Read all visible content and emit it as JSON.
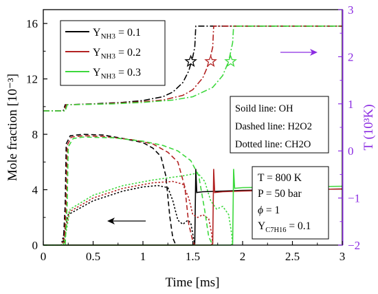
{
  "chart_data": {
    "type": "line",
    "xlabel": "Time [ms]",
    "ylabel": "Mole fraction [10⁻³]",
    "y2label": "T (10³K)",
    "xlim": [
      0,
      3
    ],
    "ylim": [
      0,
      17
    ],
    "y2lim": [
      -2,
      3
    ],
    "x_ticks": [
      0,
      0.5,
      1,
      1.5,
      2,
      2.5,
      3
    ],
    "x_tick_labels": [
      "0",
      "0.5",
      "1",
      "1.5",
      "2",
      "2.5",
      "3"
    ],
    "y_ticks": [
      0,
      4,
      8,
      12,
      16
    ],
    "y_tick_labels": [
      "0",
      "4",
      "8",
      "12",
      "16"
    ],
    "y2_ticks": [
      -2,
      -1,
      0,
      1,
      2,
      3
    ],
    "y2_tick_labels": [
      "−2",
      "−1",
      "0",
      "1",
      "2",
      "3"
    ],
    "grid": false,
    "legend_position": "top-left",
    "colors": {
      "right_axis": "#8B2BE2",
      "box": "#000000"
    },
    "legend": [
      {
        "prefix": "Y",
        "sub": "NH3",
        "suffix": " = 0.1",
        "color": "#000000"
      },
      {
        "prefix": "Y",
        "sub": "NH3",
        "suffix": " = 0.2",
        "color": "#B22222"
      },
      {
        "prefix": "Y",
        "sub": "NH3",
        "suffix": " = 0.3",
        "color": "#3CD83C"
      }
    ],
    "line_style_notes": [
      "Soild line: OH",
      "Dashed line: H2O2",
      "Dotted line: CH2O"
    ],
    "conditions": {
      "T": "T = 800 K",
      "P": "P = 50 bar",
      "phi_symbol": "ϕ",
      "phi_value": " = 1",
      "fuel_prefix": "Y",
      "fuel_sub": "C7H16",
      "fuel_suffix": " = 0.1"
    },
    "arrows": [
      {
        "direction": "left",
        "refers_to": "left axis",
        "color": "#000000"
      },
      {
        "direction": "right",
        "refers_to": "right axis",
        "color": "#8B2BE2"
      }
    ],
    "series": [
      {
        "color": "#000000",
        "ignition_ms": 1.53,
        "OH": [
          [
            0,
            0
          ],
          [
            1.5,
            0
          ],
          [
            1.52,
            0.1
          ],
          [
            1.53,
            5.5
          ],
          [
            1.54,
            3.8
          ],
          [
            1.6,
            3.85
          ],
          [
            1.8,
            3.9
          ],
          [
            2.0,
            3.95
          ],
          [
            2.5,
            4.0
          ],
          [
            3.0,
            4.05
          ]
        ],
        "H2O2": [
          [
            0,
            0
          ],
          [
            0.2,
            0
          ],
          [
            0.22,
            3
          ],
          [
            0.23,
            7.3
          ],
          [
            0.27,
            7.9
          ],
          [
            0.4,
            8.0
          ],
          [
            0.6,
            7.95
          ],
          [
            0.8,
            7.7
          ],
          [
            1.0,
            7.4
          ],
          [
            1.1,
            7.0
          ],
          [
            1.18,
            6.4
          ],
          [
            1.23,
            5.0
          ],
          [
            1.27,
            2.0
          ],
          [
            1.3,
            0.5
          ],
          [
            1.33,
            0
          ]
        ],
        "CH2O": [
          [
            0,
            0
          ],
          [
            0.18,
            0
          ],
          [
            0.2,
            0.6
          ],
          [
            0.25,
            2.2
          ],
          [
            0.5,
            3.2
          ],
          [
            0.8,
            3.9
          ],
          [
            1.0,
            4.2
          ],
          [
            1.15,
            4.3
          ],
          [
            1.25,
            4.15
          ],
          [
            1.3,
            3.2
          ],
          [
            1.35,
            1.8
          ],
          [
            1.4,
            1.5
          ],
          [
            1.45,
            1.8
          ],
          [
            1.48,
            1.6
          ],
          [
            1.5,
            0.8
          ],
          [
            1.52,
            0
          ]
        ],
        "T": [
          [
            0,
            0.85
          ],
          [
            0.2,
            0.85
          ],
          [
            0.22,
            0.98
          ],
          [
            0.5,
            1.0
          ],
          [
            0.8,
            1.03
          ],
          [
            1.0,
            1.07
          ],
          [
            1.2,
            1.15
          ],
          [
            1.3,
            1.25
          ],
          [
            1.4,
            1.45
          ],
          [
            1.46,
            1.7
          ],
          [
            1.5,
            2.0
          ],
          [
            1.52,
            2.2
          ],
          [
            1.53,
            2.65
          ],
          [
            1.6,
            2.65
          ],
          [
            2.0,
            2.65
          ],
          [
            3.0,
            2.65
          ]
        ],
        "marker": {
          "x": 1.48,
          "y2": 1.9
        }
      },
      {
        "color": "#B22222",
        "ignition_ms": 1.71,
        "OH": [
          [
            0,
            0
          ],
          [
            1.68,
            0
          ],
          [
            1.7,
            0.1
          ],
          [
            1.71,
            5.5
          ],
          [
            1.72,
            3.8
          ],
          [
            1.8,
            3.85
          ],
          [
            2.0,
            3.9
          ],
          [
            2.5,
            4.0
          ],
          [
            3.0,
            4.05
          ]
        ],
        "H2O2": [
          [
            0,
            0
          ],
          [
            0.21,
            0
          ],
          [
            0.23,
            3
          ],
          [
            0.24,
            7.2
          ],
          [
            0.28,
            7.8
          ],
          [
            0.4,
            7.9
          ],
          [
            0.6,
            7.85
          ],
          [
            0.9,
            7.6
          ],
          [
            1.1,
            7.3
          ],
          [
            1.25,
            6.7
          ],
          [
            1.35,
            6.0
          ],
          [
            1.42,
            4.2
          ],
          [
            1.46,
            1.5
          ],
          [
            1.5,
            0.3
          ],
          [
            1.52,
            0
          ]
        ],
        "CH2O": [
          [
            0,
            0
          ],
          [
            0.19,
            0
          ],
          [
            0.21,
            0.6
          ],
          [
            0.26,
            2.4
          ],
          [
            0.5,
            3.4
          ],
          [
            0.8,
            4.1
          ],
          [
            1.1,
            4.5
          ],
          [
            1.3,
            4.6
          ],
          [
            1.4,
            4.4
          ],
          [
            1.46,
            3.4
          ],
          [
            1.5,
            2.2
          ],
          [
            1.55,
            2.0
          ],
          [
            1.6,
            2.2
          ],
          [
            1.66,
            1.9
          ],
          [
            1.69,
            0.8
          ],
          [
            1.7,
            0
          ]
        ],
        "T": [
          [
            0,
            0.85
          ],
          [
            0.21,
            0.85
          ],
          [
            0.23,
            0.98
          ],
          [
            0.6,
            1.0
          ],
          [
            0.9,
            1.03
          ],
          [
            1.2,
            1.08
          ],
          [
            1.4,
            1.18
          ],
          [
            1.5,
            1.3
          ],
          [
            1.6,
            1.55
          ],
          [
            1.66,
            1.85
          ],
          [
            1.7,
            2.2
          ],
          [
            1.71,
            2.65
          ],
          [
            3.0,
            2.65
          ]
        ],
        "marker": {
          "x": 1.68,
          "y2": 1.9
        }
      },
      {
        "color": "#3CD83C",
        "ignition_ms": 1.91,
        "OH": [
          [
            0,
            0
          ],
          [
            1.88,
            0
          ],
          [
            1.9,
            0.1
          ],
          [
            1.91,
            5.5
          ],
          [
            1.92,
            4.1
          ],
          [
            2.0,
            4.15
          ],
          [
            2.5,
            4.2
          ],
          [
            3.0,
            4.25
          ]
        ],
        "H2O2": [
          [
            0,
            0
          ],
          [
            0.22,
            0
          ],
          [
            0.24,
            3
          ],
          [
            0.25,
            7.1
          ],
          [
            0.3,
            7.7
          ],
          [
            0.4,
            7.8
          ],
          [
            0.7,
            7.75
          ],
          [
            1.0,
            7.5
          ],
          [
            1.2,
            7.2
          ],
          [
            1.35,
            6.8
          ],
          [
            1.48,
            6.1
          ],
          [
            1.56,
            5.0
          ],
          [
            1.62,
            2.5
          ],
          [
            1.66,
            0.6
          ],
          [
            1.7,
            0
          ]
        ],
        "CH2O": [
          [
            0,
            0
          ],
          [
            0.2,
            0
          ],
          [
            0.22,
            0.6
          ],
          [
            0.27,
            2.6
          ],
          [
            0.5,
            3.6
          ],
          [
            0.8,
            4.3
          ],
          [
            1.1,
            4.7
          ],
          [
            1.4,
            5.0
          ],
          [
            1.55,
            5.2
          ],
          [
            1.62,
            4.6
          ],
          [
            1.68,
            3.2
          ],
          [
            1.74,
            2.6
          ],
          [
            1.8,
            2.8
          ],
          [
            1.86,
            2.2
          ],
          [
            1.89,
            0.8
          ],
          [
            1.9,
            0
          ]
        ],
        "T": [
          [
            0,
            0.85
          ],
          [
            0.22,
            0.85
          ],
          [
            0.24,
            0.98
          ],
          [
            0.7,
            1.0
          ],
          [
            1.0,
            1.03
          ],
          [
            1.3,
            1.08
          ],
          [
            1.5,
            1.15
          ],
          [
            1.7,
            1.35
          ],
          [
            1.8,
            1.6
          ],
          [
            1.86,
            1.9
          ],
          [
            1.9,
            2.3
          ],
          [
            1.91,
            2.65
          ],
          [
            3.0,
            2.65
          ]
        ],
        "marker": {
          "x": 1.88,
          "y2": 1.9
        }
      }
    ]
  }
}
